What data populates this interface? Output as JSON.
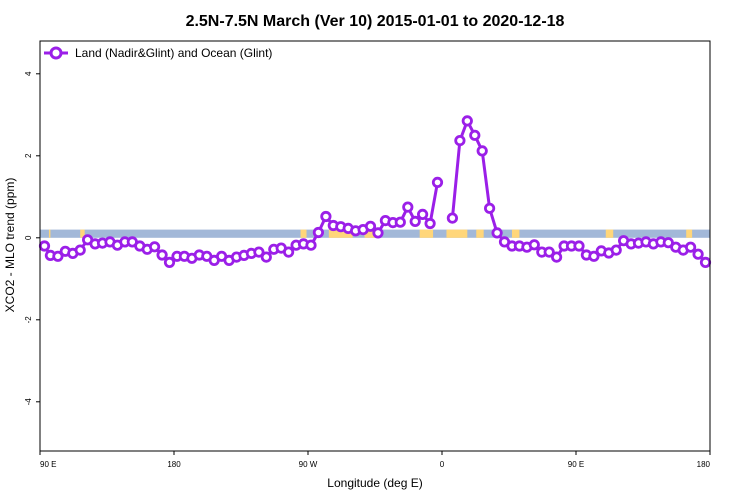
{
  "chart_data": {
    "type": "line",
    "title": "2.5N-7.5N March (Ver 10)   2015-01-01 to 2020-12-18",
    "xlabel": "Longitude (deg E)",
    "ylabel": "XCO2 - MLO trend (ppm)",
    "x_ticks": [
      {
        "value": 90,
        "label": "90 E"
      },
      {
        "value": 180,
        "label": "180"
      },
      {
        "value": 270,
        "label": "90 W"
      },
      {
        "value": 360,
        "label": "0"
      },
      {
        "value": 450,
        "label": "90 E"
      },
      {
        "value": 540,
        "label": "180"
      }
    ],
    "y_ticks": [
      {
        "value": -4,
        "label": "-4"
      },
      {
        "value": -2,
        "label": "-2"
      },
      {
        "value": 0,
        "label": "0"
      },
      {
        "value": 2,
        "label": "2"
      },
      {
        "value": 4,
        "label": "4"
      }
    ],
    "xlim": [
      90,
      540
    ],
    "ylim": [
      -5.2,
      4.8
    ],
    "legend_position": "top-left",
    "land_strip": {
      "y_range": [
        0,
        0.2
      ],
      "ocean_color": "#a2b8d8",
      "land_color": "#ffd67a",
      "land_intervals": [
        [
          96,
          97
        ],
        [
          117,
          120
        ],
        [
          265,
          269
        ],
        [
          284,
          300
        ],
        [
          308,
          316
        ],
        [
          345,
          354
        ],
        [
          363,
          377
        ],
        [
          383,
          388
        ],
        [
          407,
          412
        ],
        [
          470,
          475
        ],
        [
          524,
          528
        ]
      ]
    },
    "series": [
      {
        "name": "Land (Nadir&Glint) and Ocean (Glint)",
        "color": "#9b1fe8",
        "segments": [
          [
            {
              "x": 93,
              "y": -0.2
            },
            {
              "x": 97,
              "y": -0.43
            },
            {
              "x": 102,
              "y": -0.45
            },
            {
              "x": 107,
              "y": -0.33
            },
            {
              "x": 112,
              "y": -0.38
            },
            {
              "x": 117,
              "y": -0.3
            },
            {
              "x": 122,
              "y": -0.05
            },
            {
              "x": 127,
              "y": -0.15
            },
            {
              "x": 132,
              "y": -0.13
            },
            {
              "x": 137,
              "y": -0.1
            },
            {
              "x": 142,
              "y": -0.18
            },
            {
              "x": 147,
              "y": -0.1
            },
            {
              "x": 152,
              "y": -0.1
            },
            {
              "x": 157,
              "y": -0.2
            },
            {
              "x": 162,
              "y": -0.28
            },
            {
              "x": 167,
              "y": -0.22
            },
            {
              "x": 172,
              "y": -0.42
            },
            {
              "x": 177,
              "y": -0.6
            },
            {
              "x": 182,
              "y": -0.45
            },
            {
              "x": 187,
              "y": -0.45
            },
            {
              "x": 192,
              "y": -0.5
            },
            {
              "x": 197,
              "y": -0.42
            },
            {
              "x": 202,
              "y": -0.45
            },
            {
              "x": 207,
              "y": -0.55
            },
            {
              "x": 212,
              "y": -0.45
            },
            {
              "x": 217,
              "y": -0.55
            },
            {
              "x": 222,
              "y": -0.47
            },
            {
              "x": 227,
              "y": -0.43
            },
            {
              "x": 232,
              "y": -0.38
            },
            {
              "x": 237,
              "y": -0.35
            },
            {
              "x": 242,
              "y": -0.47
            },
            {
              "x": 247,
              "y": -0.28
            },
            {
              "x": 252,
              "y": -0.25
            },
            {
              "x": 257,
              "y": -0.35
            },
            {
              "x": 262,
              "y": -0.18
            },
            {
              "x": 267,
              "y": -0.15
            },
            {
              "x": 272,
              "y": -0.18
            },
            {
              "x": 277,
              "y": 0.13
            },
            {
              "x": 282,
              "y": 0.52
            },
            {
              "x": 287,
              "y": 0.3
            },
            {
              "x": 292,
              "y": 0.27
            },
            {
              "x": 297,
              "y": 0.23
            },
            {
              "x": 302,
              "y": 0.17
            },
            {
              "x": 307,
              "y": 0.2
            },
            {
              "x": 312,
              "y": 0.28
            },
            {
              "x": 317,
              "y": 0.12
            },
            {
              "x": 322,
              "y": 0.42
            },
            {
              "x": 327,
              "y": 0.37
            },
            {
              "x": 332,
              "y": 0.38
            },
            {
              "x": 337,
              "y": 0.75
            },
            {
              "x": 342,
              "y": 0.4
            },
            {
              "x": 347,
              "y": 0.57
            },
            {
              "x": 352,
              "y": 0.35
            },
            {
              "x": 357,
              "y": 1.35
            }
          ],
          [
            {
              "x": 367,
              "y": 0.48
            },
            {
              "x": 372,
              "y": 2.37
            },
            {
              "x": 377,
              "y": 2.85
            },
            {
              "x": 382,
              "y": 2.5
            },
            {
              "x": 387,
              "y": 2.12
            },
            {
              "x": 392,
              "y": 0.72
            },
            {
              "x": 397,
              "y": 0.12
            },
            {
              "x": 402,
              "y": -0.1
            },
            {
              "x": 407,
              "y": -0.2
            },
            {
              "x": 412,
              "y": -0.2
            },
            {
              "x": 417,
              "y": -0.23
            },
            {
              "x": 422,
              "y": -0.17
            },
            {
              "x": 427,
              "y": -0.35
            },
            {
              "x": 432,
              "y": -0.35
            },
            {
              "x": 437,
              "y": -0.47
            },
            {
              "x": 442,
              "y": -0.2
            },
            {
              "x": 447,
              "y": -0.2
            },
            {
              "x": 452,
              "y": -0.2
            },
            {
              "x": 457,
              "y": -0.42
            },
            {
              "x": 462,
              "y": -0.45
            },
            {
              "x": 467,
              "y": -0.32
            },
            {
              "x": 472,
              "y": -0.37
            },
            {
              "x": 477,
              "y": -0.3
            },
            {
              "x": 482,
              "y": -0.07
            },
            {
              "x": 487,
              "y": -0.15
            },
            {
              "x": 492,
              "y": -0.13
            },
            {
              "x": 497,
              "y": -0.1
            },
            {
              "x": 502,
              "y": -0.15
            },
            {
              "x": 507,
              "y": -0.1
            },
            {
              "x": 512,
              "y": -0.12
            },
            {
              "x": 517,
              "y": -0.23
            },
            {
              "x": 522,
              "y": -0.3
            },
            {
              "x": 527,
              "y": -0.23
            },
            {
              "x": 532,
              "y": -0.4
            },
            {
              "x": 537,
              "y": -0.6
            }
          ]
        ]
      }
    ]
  }
}
